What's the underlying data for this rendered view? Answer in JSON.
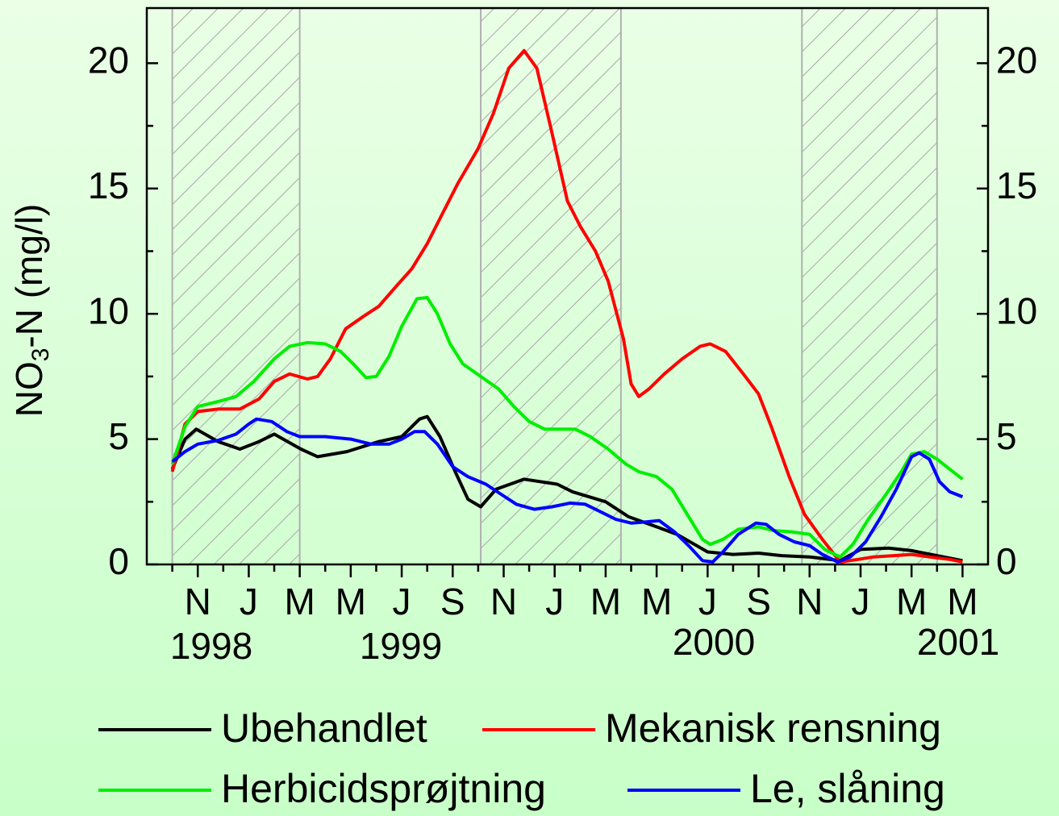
{
  "chart_data": {
    "type": "line",
    "ylabel": {
      "main": "NO",
      "sub": "3",
      "rest": "-N (mg/l)"
    },
    "xlim": [
      -2,
      31
    ],
    "xticks": [
      {
        "value": 0,
        "label": "N"
      },
      {
        "value": 2,
        "label": "J"
      },
      {
        "value": 4,
        "label": "M"
      },
      {
        "value": 6,
        "label": "M"
      },
      {
        "value": 8,
        "label": "J"
      },
      {
        "value": 10,
        "label": "S"
      },
      {
        "value": 12,
        "label": "N"
      },
      {
        "value": 14,
        "label": "J"
      },
      {
        "value": 16,
        "label": "M"
      },
      {
        "value": 18,
        "label": "M"
      },
      {
        "value": 20,
        "label": "J"
      },
      {
        "value": 22,
        "label": "S"
      },
      {
        "value": 24,
        "label": "N"
      },
      {
        "value": 26,
        "label": "J"
      },
      {
        "value": 28,
        "label": "M"
      },
      {
        "value": 30,
        "label": "M"
      }
    ],
    "minor_xticks": [
      -1,
      1,
      3,
      5,
      7,
      9,
      11,
      13,
      15,
      17,
      19,
      21,
      23,
      25,
      27,
      29
    ],
    "year_labels": [
      "1998",
      "1999",
      "2000",
      "2001"
    ],
    "ylim": [
      0,
      22.2
    ],
    "yticks": [
      0,
      5,
      10,
      15,
      20
    ],
    "minor_yticks": [
      2.5,
      7.5,
      12.5,
      17.5
    ],
    "mirror_y_axis": true,
    "shaded_periods": [
      [
        -1,
        4
      ],
      [
        11.1,
        16.6
      ],
      [
        23.7,
        29
      ]
    ],
    "series": [
      {
        "name": "Ubehandlet",
        "color": "#000000",
        "x": [
          -1.0,
          -0.5,
          -0.06,
          0.8,
          1.65,
          2.4,
          3.0,
          4.05,
          4.7,
          5.85,
          7.1,
          8.0,
          8.7,
          9.0,
          9.5,
          10.1,
          10.6,
          11.1,
          11.7,
          12.8,
          14.1,
          14.7,
          16.0,
          16.9,
          18.0,
          18.8,
          20.0,
          21.0,
          22.0,
          22.9,
          24.0,
          25.2,
          26.0,
          27.1,
          28.0,
          29.0,
          30.0
        ],
        "values": [
          3.8,
          5.0,
          5.4,
          4.9,
          4.6,
          4.9,
          5.2,
          4.6,
          4.3,
          4.5,
          4.9,
          5.1,
          5.8,
          5.9,
          5.1,
          3.7,
          2.6,
          2.3,
          3.0,
          3.4,
          3.2,
          2.9,
          2.5,
          1.9,
          1.5,
          1.2,
          0.5,
          0.4,
          0.45,
          0.35,
          0.3,
          0.15,
          0.6,
          0.65,
          0.55,
          0.35,
          0.15
        ]
      },
      {
        "name": "Mekanisk rensning",
        "color": "#ff0000",
        "x": [
          -1.0,
          -0.5,
          0,
          0.8,
          1.65,
          2.4,
          3.0,
          3.6,
          4.3,
          4.7,
          5.2,
          5.8,
          6.5,
          7.1,
          7.7,
          8.4,
          9.0,
          9.6,
          10.2,
          11.0,
          11.6,
          12.2,
          12.8,
          13.3,
          13.9,
          14.5,
          15.0,
          15.6,
          16.1,
          16.7,
          17.0,
          17.3,
          17.7,
          18.3,
          19.0,
          19.7,
          20.1,
          20.7,
          21.4,
          22.0,
          22.5,
          23.2,
          23.8,
          24.5,
          25.2,
          25.9,
          26.5,
          27.3,
          28.0,
          28.7,
          29.5,
          30.0
        ],
        "values": [
          3.7,
          5.6,
          6.1,
          6.2,
          6.2,
          6.6,
          7.3,
          7.6,
          7.4,
          7.5,
          8.2,
          9.4,
          9.9,
          10.3,
          11.0,
          11.8,
          12.8,
          14.0,
          15.2,
          16.6,
          18.0,
          19.8,
          20.5,
          19.8,
          17.2,
          14.5,
          13.5,
          12.5,
          11.3,
          9.0,
          7.2,
          6.7,
          7.0,
          7.6,
          8.2,
          8.7,
          8.8,
          8.5,
          7.6,
          6.8,
          5.5,
          3.5,
          2.0,
          1.0,
          0.1,
          0.2,
          0.3,
          0.35,
          0.4,
          0.3,
          0.2,
          0.1
        ]
      },
      {
        "name": "Herbicidsprøjtning",
        "color": "#00ee00",
        "x": [
          -1.0,
          -0.5,
          0,
          0.8,
          1.5,
          2.2,
          3.0,
          3.6,
          4.3,
          5.0,
          5.6,
          6.1,
          6.6,
          7.0,
          7.5,
          8.0,
          8.6,
          9.0,
          9.4,
          9.9,
          10.4,
          11.1,
          11.8,
          12.4,
          13.0,
          13.6,
          14.2,
          14.8,
          15.4,
          16.1,
          16.8,
          17.3,
          18.0,
          18.6,
          19.2,
          19.8,
          20.1,
          20.6,
          21.2,
          22.0,
          22.6,
          23.3,
          24.0,
          24.6,
          25.2,
          25.7,
          26.3,
          27.0,
          27.6,
          28.0,
          28.5,
          29.0,
          29.5,
          30.0
        ],
        "values": [
          4.0,
          5.5,
          6.3,
          6.5,
          6.7,
          7.3,
          8.2,
          8.7,
          8.85,
          8.8,
          8.5,
          8.0,
          7.45,
          7.5,
          8.3,
          9.5,
          10.6,
          10.65,
          10.0,
          8.8,
          8.0,
          7.5,
          7.0,
          6.3,
          5.7,
          5.4,
          5.4,
          5.4,
          5.1,
          4.6,
          4.0,
          3.7,
          3.5,
          3.0,
          2.0,
          1.0,
          0.8,
          1.0,
          1.4,
          1.5,
          1.35,
          1.3,
          1.2,
          0.6,
          0.3,
          0.8,
          1.8,
          2.8,
          3.7,
          4.4,
          4.5,
          4.2,
          3.8,
          3.4
        ]
      },
      {
        "name": "Le, slåning",
        "color": "#0000ff",
        "x": [
          -1.0,
          -0.5,
          0,
          0.8,
          1.5,
          2.0,
          2.3,
          2.9,
          3.5,
          4.0,
          5.0,
          6.0,
          6.8,
          7.5,
          8.0,
          8.5,
          8.9,
          9.4,
          10.0,
          10.6,
          11.3,
          11.9,
          12.5,
          13.2,
          13.9,
          14.6,
          15.2,
          15.8,
          16.4,
          17.0,
          17.6,
          18.1,
          18.7,
          19.3,
          19.8,
          20.2,
          20.6,
          21.2,
          21.9,
          22.3,
          22.8,
          23.4,
          24.0,
          24.5,
          25.1,
          25.6,
          26.2,
          26.8,
          27.4,
          28.0,
          28.3,
          28.7,
          29.1,
          29.5,
          30.0
        ],
        "values": [
          4.1,
          4.5,
          4.8,
          4.95,
          5.2,
          5.6,
          5.8,
          5.7,
          5.3,
          5.1,
          5.1,
          5.0,
          4.8,
          4.8,
          5.0,
          5.3,
          5.3,
          4.8,
          3.9,
          3.5,
          3.2,
          2.8,
          2.4,
          2.2,
          2.3,
          2.45,
          2.4,
          2.1,
          1.8,
          1.65,
          1.7,
          1.75,
          1.3,
          0.7,
          0.15,
          0.1,
          0.5,
          1.2,
          1.65,
          1.6,
          1.2,
          0.9,
          0.75,
          0.4,
          0.1,
          0.3,
          0.9,
          1.9,
          3.0,
          4.3,
          4.45,
          4.2,
          3.3,
          2.9,
          2.7
        ]
      }
    ]
  }
}
